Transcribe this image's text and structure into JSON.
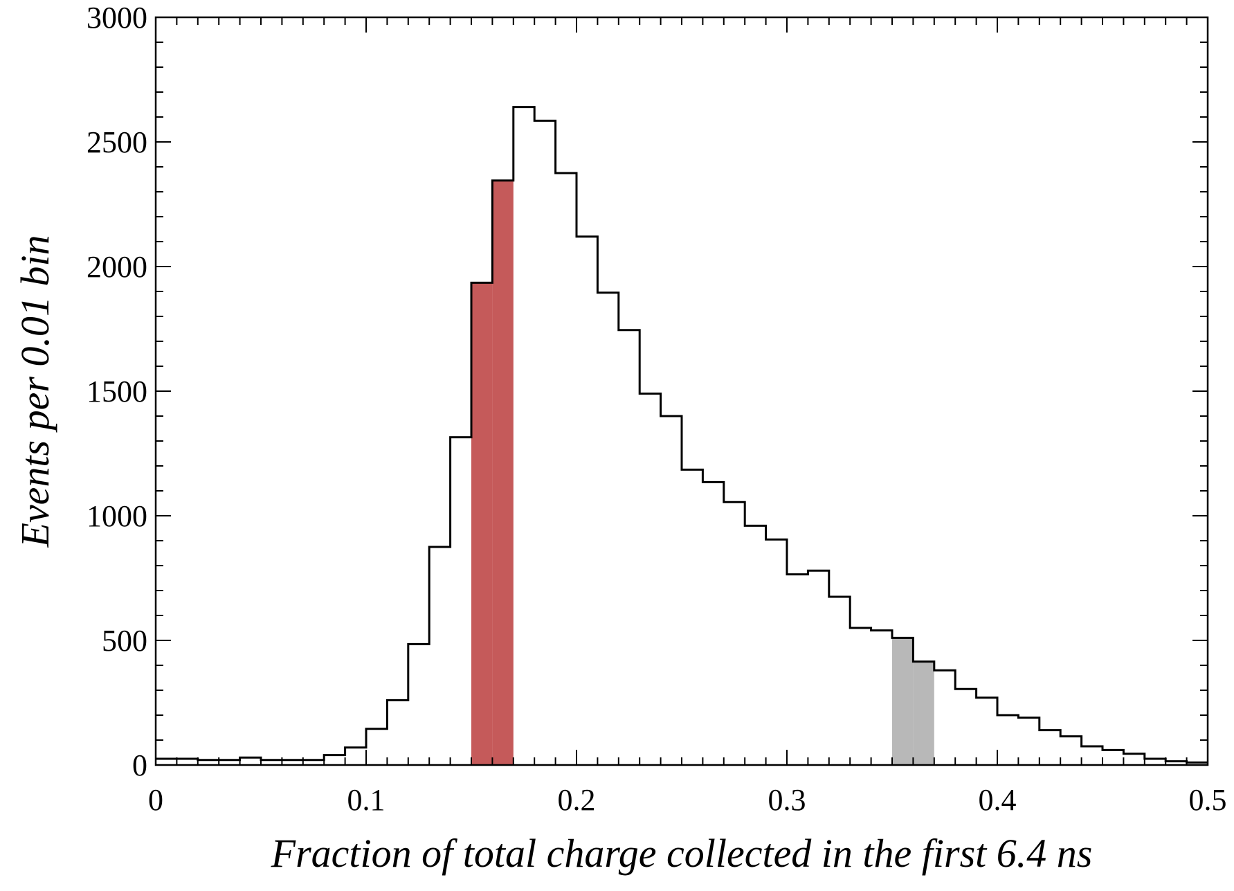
{
  "chart_data": {
    "type": "histogram",
    "title": "",
    "xlabel": "Fraction of total charge collected in the first 6.4 ns",
    "ylabel": "Events per 0.01 bin",
    "xlim": [
      0,
      0.5
    ],
    "ylim": [
      0,
      3000
    ],
    "x_ticks": [
      0,
      0.1,
      0.2,
      0.3,
      0.4,
      0.5
    ],
    "x_tick_labels": [
      "0",
      "0.1",
      "0.2",
      "0.3",
      "0.4",
      "0.5"
    ],
    "y_ticks": [
      0,
      500,
      1000,
      1500,
      2000,
      2500,
      3000
    ],
    "y_tick_labels": [
      "0",
      "500",
      "1000",
      "1500",
      "2000",
      "2500",
      "3000"
    ],
    "bin_width": 0.01,
    "bin_start": 0,
    "values": [
      25,
      25,
      20,
      20,
      30,
      20,
      20,
      20,
      40,
      70,
      145,
      260,
      485,
      875,
      1315,
      1935,
      2345,
      2640,
      2585,
      2375,
      2120,
      1895,
      1745,
      1490,
      1400,
      1185,
      1135,
      1055,
      960,
      905,
      765,
      780,
      675,
      550,
      540,
      510,
      415,
      380,
      305,
      270,
      200,
      190,
      140,
      115,
      75,
      60,
      45,
      25,
      15,
      10
    ],
    "highlights": [
      {
        "range": [
          0.15,
          0.17
        ],
        "color": "#c55a5a"
      },
      {
        "range": [
          0.35,
          0.37
        ],
        "color": "#b8b8b8"
      }
    ],
    "grid": false,
    "legend": "none",
    "line_color": "#000000"
  }
}
